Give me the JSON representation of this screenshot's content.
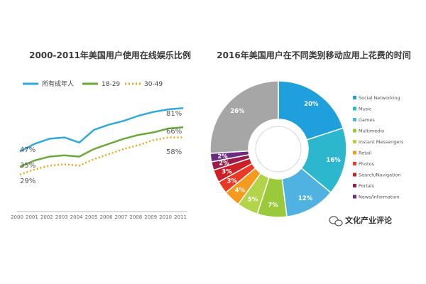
{
  "chart_data": [
    {
      "type": "line",
      "title": "2000-2011年美国用户使用在线娱乐比例",
      "x": [
        "2000",
        "2001",
        "2002",
        "2003",
        "2004",
        "2005",
        "2006",
        "2007",
        "2008",
        "2009",
        "2010",
        "2011"
      ],
      "ylim": [
        0,
        100
      ],
      "grid": false,
      "legend_position": "top-left",
      "series": [
        {
          "name": "所有成年人",
          "color": "#2eaadc",
          "style": "solid",
          "values": [
            47,
            53,
            57,
            58,
            54,
            64,
            68,
            71,
            75,
            78,
            80,
            81
          ]
        },
        {
          "name": "18-29",
          "color": "#6aaa3a",
          "style": "solid",
          "values": [
            35,
            40,
            43,
            44,
            43,
            49,
            53,
            57,
            60,
            62,
            65,
            66
          ]
        },
        {
          "name": "30-49",
          "color": "#f0a21a",
          "style": "dotted",
          "values": [
            29,
            33,
            36,
            37,
            36,
            41,
            45,
            49,
            52,
            56,
            58,
            58
          ]
        }
      ],
      "end_labels": [
        "81%",
        "66%",
        "58%"
      ],
      "start_labels": [
        "47%",
        "35%",
        "29%"
      ]
    },
    {
      "type": "pie",
      "subtype": "donut",
      "title": "2016年美国用户在不同类别移动应用上花费的时间",
      "legend_position": "right",
      "slices": [
        {
          "label": "Social Networking",
          "value": 20,
          "text": "20%",
          "color": "#1f9fdc"
        },
        {
          "label": "Music",
          "value": 16,
          "text": "16%",
          "color": "#2db7cf"
        },
        {
          "label": "Games",
          "value": 12,
          "text": "12%",
          "color": "#4fb2e0"
        },
        {
          "label": "Multimedia",
          "value": 7,
          "text": "7%",
          "color": "#9ac93b"
        },
        {
          "label": "Instant Messengers",
          "value": 5,
          "text": "5%",
          "color": "#b3d44a"
        },
        {
          "label": "Retail",
          "value": 4,
          "text": "4%",
          "color": "#f49a1e"
        },
        {
          "label": "Photos",
          "value": 3,
          "text": "3%",
          "color": "#ea3a26"
        },
        {
          "label": "Search/Navigation",
          "value": 3,
          "text": "3%",
          "color": "#cc1f26"
        },
        {
          "label": "Portals",
          "value": 2,
          "text": "2%",
          "color": "#9a1a4a"
        },
        {
          "label": "News/Information",
          "value": 2,
          "text": "2%",
          "color": "#6a2c80"
        },
        {
          "label": "",
          "value": 26,
          "text": "26%",
          "color": "#a6a6a6"
        }
      ]
    }
  ],
  "watermark": {
    "text": "文化产业评论"
  }
}
